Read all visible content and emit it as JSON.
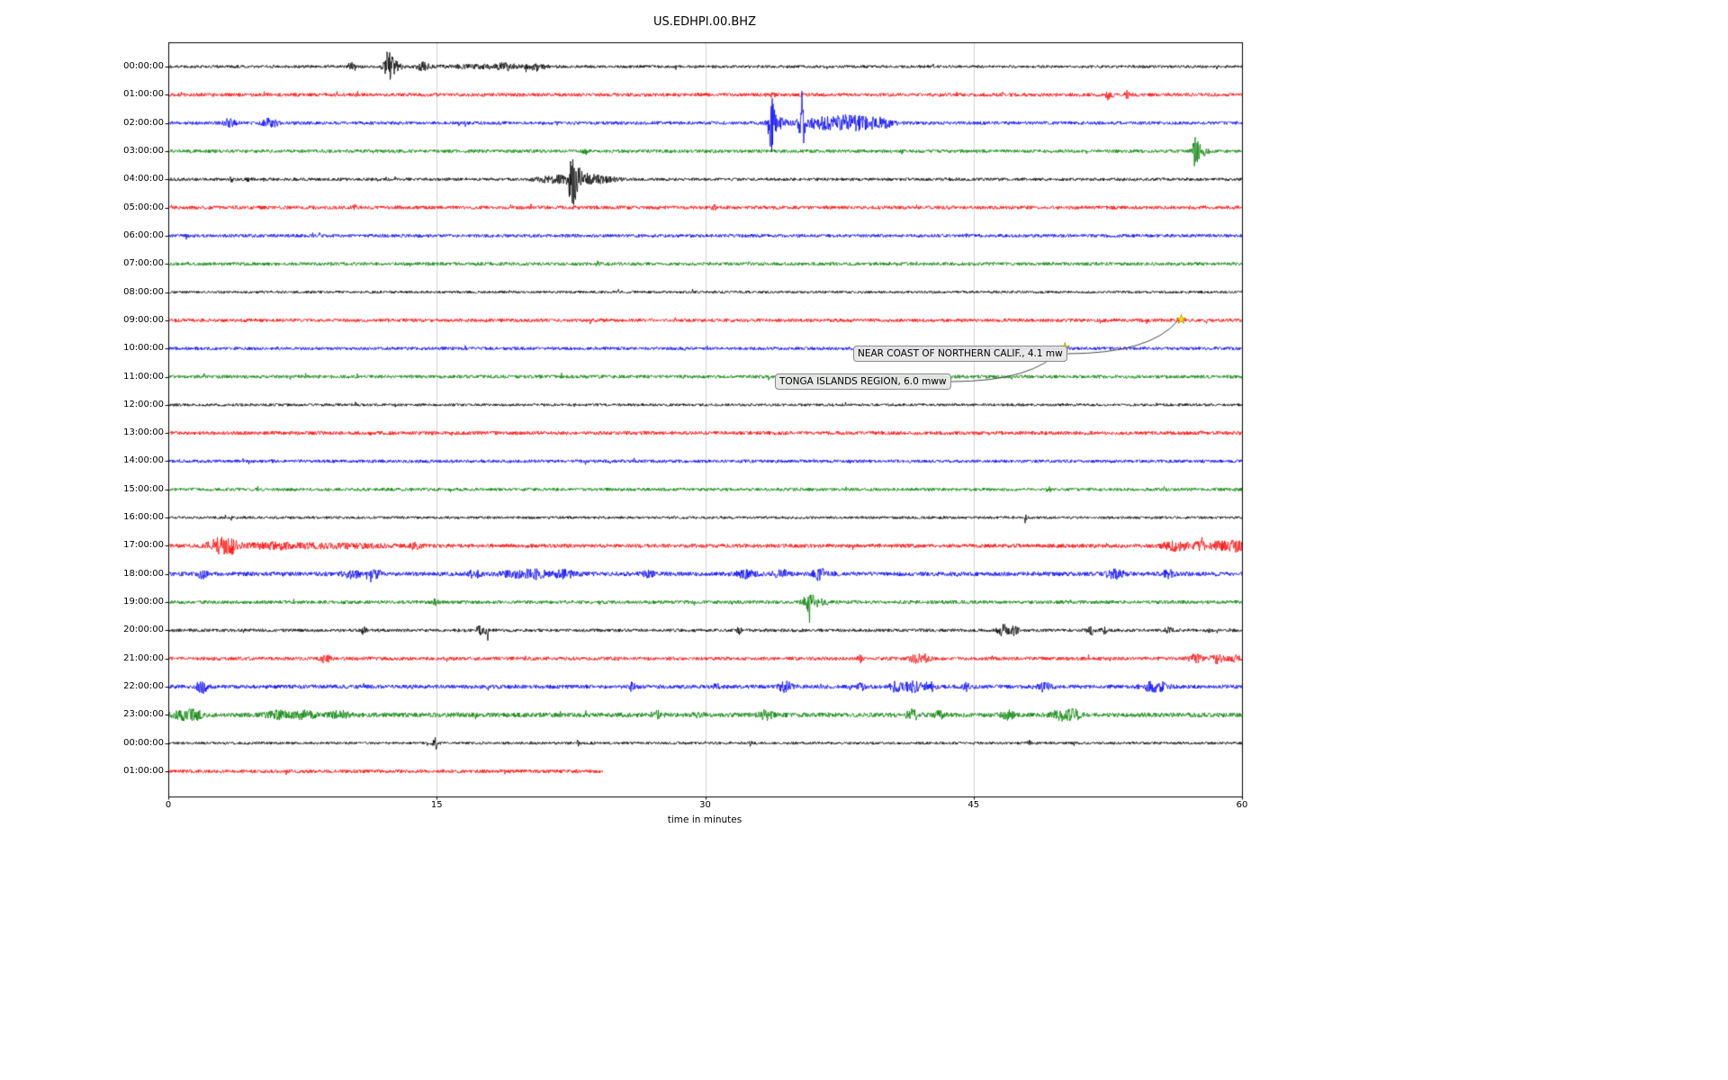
{
  "title": "US.EDHPI.00.BHZ",
  "chart_data": {
    "type": "line",
    "chart_kind": "seismogram-helicorder-dayplot",
    "station_id": "US.EDHPI.00.BHZ",
    "xlabel": "time in minutes",
    "xlim": [
      0,
      60
    ],
    "x_ticks": [
      "0",
      "15",
      "30",
      "45",
      "60"
    ],
    "grid": {
      "vertical_lines_minutes": [
        15,
        30,
        45
      ],
      "color": "#d3d3d3"
    },
    "palette": [
      "#000000",
      "#ff0000",
      "#0000ff",
      "#008000"
    ],
    "rows": [
      {
        "label": "00:00:00",
        "color": "#000000",
        "noise": 1.6,
        "bursts": [
          [
            10.2,
            0.12,
            4
          ],
          [
            12.3,
            0.18,
            14
          ],
          [
            12.6,
            0.3,
            5
          ],
          [
            14.2,
            0.25,
            4
          ],
          [
            17.5,
            1.8,
            1.5
          ],
          [
            18.9,
            0.3,
            3
          ],
          [
            20.6,
            0.35,
            3.5
          ]
        ]
      },
      {
        "label": "01:00:00",
        "color": "#ff0000",
        "noise": 2.0,
        "bursts": [
          [
            33.8,
            0.1,
            2.5
          ],
          [
            52.6,
            0.12,
            6
          ],
          [
            53.6,
            0.1,
            4
          ]
        ]
      },
      {
        "label": "02:00:00",
        "color": "#0000ff",
        "noise": 1.9,
        "bursts": [
          [
            3.4,
            0.25,
            4
          ],
          [
            5.7,
            0.3,
            4.5
          ],
          [
            33.7,
            0.12,
            27
          ],
          [
            34.0,
            0.3,
            6
          ],
          [
            35.4,
            0.1,
            34
          ],
          [
            36.9,
            1.2,
            6
          ],
          [
            38.7,
            0.9,
            5
          ],
          [
            40.0,
            0.4,
            3
          ]
        ]
      },
      {
        "label": "03:00:00",
        "color": "#008000",
        "noise": 1.9,
        "bursts": [
          [
            23.3,
            0.08,
            3
          ],
          [
            57.4,
            0.09,
            20
          ],
          [
            57.7,
            0.25,
            6
          ]
        ]
      },
      {
        "label": "04:00:00",
        "color": "#000000",
        "noise": 1.7,
        "bursts": [
          [
            3.5,
            0.1,
            2
          ],
          [
            4.5,
            0.1,
            2
          ],
          [
            21.6,
            0.7,
            3.5
          ],
          [
            22.6,
            0.22,
            23
          ],
          [
            23.2,
            0.5,
            6
          ],
          [
            24.2,
            0.7,
            2.5
          ]
        ]
      },
      {
        "label": "05:00:00",
        "color": "#ff0000",
        "noise": 2.0,
        "bursts": [
          [
            10.4,
            0.08,
            2
          ],
          [
            30.5,
            0.08,
            2.5
          ]
        ]
      },
      {
        "label": "06:00:00",
        "color": "#0000ff",
        "noise": 1.9,
        "bursts": []
      },
      {
        "label": "07:00:00",
        "color": "#008000",
        "noise": 1.9,
        "bursts": [
          [
            24.0,
            0.08,
            2
          ]
        ]
      },
      {
        "label": "08:00:00",
        "color": "#000000",
        "noise": 1.5,
        "bursts": []
      },
      {
        "label": "09:00:00",
        "color": "#ff0000",
        "noise": 2.0,
        "bursts": []
      },
      {
        "label": "10:00:00",
        "color": "#0000ff",
        "noise": 1.8,
        "bursts": []
      },
      {
        "label": "11:00:00",
        "color": "#008000",
        "noise": 1.9,
        "bursts": []
      },
      {
        "label": "12:00:00",
        "color": "#000000",
        "noise": 1.5,
        "bursts": []
      },
      {
        "label": "13:00:00",
        "color": "#ff0000",
        "noise": 2.1,
        "bursts": []
      },
      {
        "label": "14:00:00",
        "color": "#0000ff",
        "noise": 1.8,
        "bursts": []
      },
      {
        "label": "15:00:00",
        "color": "#008000",
        "noise": 1.8,
        "bursts": []
      },
      {
        "label": "16:00:00",
        "color": "#000000",
        "noise": 1.5,
        "bursts": [
          [
            47.9,
            0.06,
            2.5
          ]
        ]
      },
      {
        "label": "17:00:00",
        "color": "#ff0000",
        "noise": 2.2,
        "bursts": [
          [
            2.9,
            0.45,
            8
          ],
          [
            3.6,
            0.25,
            6
          ],
          [
            5.8,
            1.2,
            2.5
          ],
          [
            9.5,
            2.0,
            1.8
          ],
          [
            13.8,
            0.25,
            2.5
          ],
          [
            56.3,
            0.5,
            4.5
          ],
          [
            57.6,
            0.35,
            3.5
          ],
          [
            59.0,
            0.5,
            4.5
          ],
          [
            59.8,
            0.3,
            4.5
          ]
        ]
      },
      {
        "label": "18:00:00",
        "color": "#0000ff",
        "noise": 2.4,
        "bursts": [
          [
            1.9,
            0.18,
            4.5
          ],
          [
            10.3,
            0.35,
            3.5
          ],
          [
            11.6,
            0.25,
            3.5
          ],
          [
            17.1,
            0.25,
            3.5
          ],
          [
            19.6,
            0.7,
            3
          ],
          [
            20.6,
            0.35,
            4
          ],
          [
            22.1,
            0.45,
            3.5
          ],
          [
            26.8,
            0.25,
            2.5
          ],
          [
            32.3,
            0.35,
            4.5
          ],
          [
            34.2,
            0.25,
            5
          ],
          [
            36.4,
            0.25,
            6
          ],
          [
            52.9,
            0.35,
            4.5
          ],
          [
            55.9,
            0.25,
            3.5
          ]
        ]
      },
      {
        "label": "19:00:00",
        "color": "#008000",
        "noise": 2.0,
        "bursts": [
          [
            14.9,
            0.12,
            2.5
          ],
          [
            35.8,
            0.2,
            8
          ],
          [
            36.3,
            0.4,
            3.5
          ]
        ]
      },
      {
        "label": "20:00:00",
        "color": "#000000",
        "noise": 1.8,
        "bursts": [
          [
            10.9,
            0.08,
            5
          ],
          [
            17.4,
            0.12,
            6.5
          ],
          [
            17.8,
            0.08,
            4.5
          ],
          [
            31.9,
            0.08,
            3.5
          ],
          [
            46.7,
            0.25,
            6
          ],
          [
            47.3,
            0.15,
            5
          ],
          [
            51.6,
            0.15,
            4.5
          ],
          [
            52.3,
            0.12,
            4.5
          ],
          [
            55.9,
            0.15,
            3.5
          ],
          [
            58.1,
            0.08,
            2.5
          ]
        ]
      },
      {
        "label": "21:00:00",
        "color": "#ff0000",
        "noise": 2.0,
        "bursts": [
          [
            8.8,
            0.18,
            4.5
          ],
          [
            38.7,
            0.12,
            3.5
          ],
          [
            41.8,
            0.25,
            5.5
          ],
          [
            42.4,
            0.15,
            4.5
          ],
          [
            57.4,
            0.25,
            4.5
          ],
          [
            58.6,
            0.25,
            4.5
          ],
          [
            59.6,
            0.2,
            3.5
          ]
        ]
      },
      {
        "label": "22:00:00",
        "color": "#0000ff",
        "noise": 2.3,
        "bursts": [
          [
            1.9,
            0.2,
            6.5
          ],
          [
            25.9,
            0.15,
            3.5
          ],
          [
            30.6,
            0.15,
            3
          ],
          [
            34.5,
            0.25,
            5.5
          ],
          [
            38.7,
            0.15,
            3.5
          ],
          [
            40.6,
            0.25,
            4.5
          ],
          [
            41.6,
            0.35,
            5
          ],
          [
            42.6,
            0.25,
            4.5
          ],
          [
            44.6,
            0.15,
            3.5
          ],
          [
            48.9,
            0.25,
            4.5
          ],
          [
            54.9,
            0.35,
            4.5
          ],
          [
            55.6,
            0.25,
            3.5
          ]
        ]
      },
      {
        "label": "23:00:00",
        "color": "#008000",
        "noise": 2.6,
        "bursts": [
          [
            0.9,
            0.4,
            4.5
          ],
          [
            1.6,
            0.25,
            3.5
          ],
          [
            6.1,
            0.45,
            3.5
          ],
          [
            7.6,
            0.45,
            3.5
          ],
          [
            9.6,
            0.35,
            3.5
          ],
          [
            27.3,
            0.18,
            3.5
          ],
          [
            29.6,
            0.18,
            2.5
          ],
          [
            33.4,
            0.25,
            4.5
          ],
          [
            41.6,
            0.25,
            5
          ],
          [
            43.1,
            0.18,
            3.5
          ],
          [
            46.9,
            0.25,
            4.5
          ],
          [
            49.9,
            0.35,
            5
          ],
          [
            50.6,
            0.25,
            4.5
          ]
        ]
      },
      {
        "label": "00:00:00",
        "color": "#000000",
        "noise": 1.5,
        "bursts": [
          [
            14.95,
            0.1,
            6
          ],
          [
            22.9,
            0.08,
            2.5
          ],
          [
            32.5,
            0.08,
            2.5
          ],
          [
            48.1,
            0.08,
            2
          ]
        ]
      },
      {
        "label": "01:00:00",
        "color": "#ff0000",
        "noise": 2.0,
        "end_minute": 24.3,
        "bursts": []
      }
    ],
    "events": [
      {
        "label": "NEAR COAST OF NORTHERN CALIF., 4.1 mw",
        "row_label": "09:00:00",
        "row_index": 9,
        "minute": 56.6,
        "marker": "yellow-star"
      },
      {
        "label": "TONGA ISLANDS REGION, 6.0 mww",
        "row_label": "10:00:00",
        "row_index": 10,
        "minute": 50.1,
        "marker": "yellow-star"
      }
    ]
  }
}
